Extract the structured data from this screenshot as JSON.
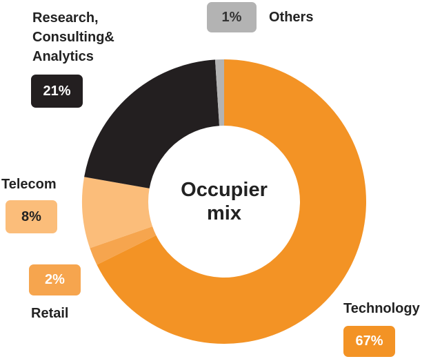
{
  "chart_data": {
    "type": "donut",
    "center_label": "Occupier mix",
    "categories": [
      "Technology",
      "Retail",
      "Telecom",
      "Research, Consulting& Analytics",
      "Others"
    ],
    "values": [
      67,
      2,
      8,
      21,
      1
    ],
    "value_labels": [
      "67%",
      "2%",
      "8%",
      "21%",
      "1%"
    ],
    "colors": [
      "#f39325",
      "#f6a54e",
      "#fbbd7a",
      "#231f20",
      "#b3b3b3"
    ]
  }
}
